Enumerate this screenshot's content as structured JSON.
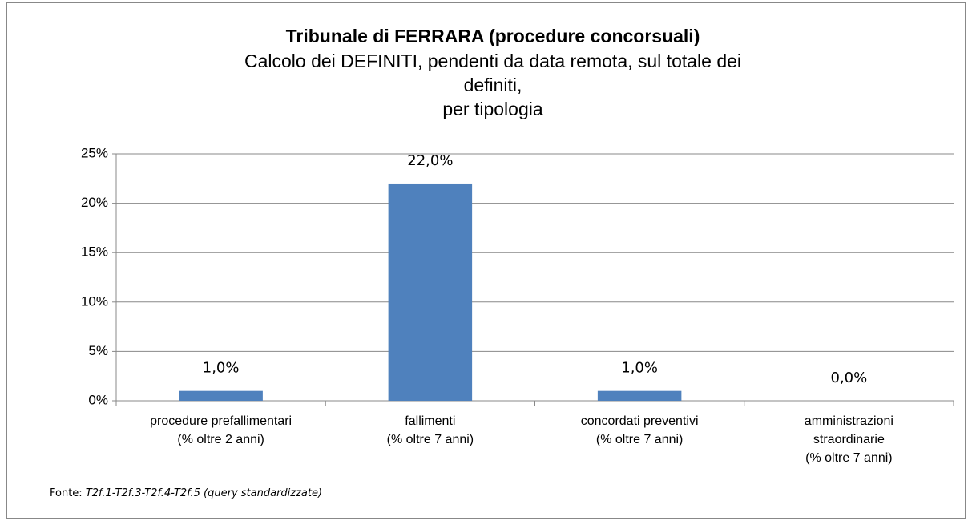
{
  "chart_data": {
    "type": "bar",
    "title": "Tribunale di FERRARA (procedure concorsuali)",
    "subtitle": [
      "Calcolo dei DEFINITI, pendenti da data remota, sul totale dei",
      "definiti,",
      "per tipologia"
    ],
    "categories": [
      "procedure prefallimentari\n(% oltre 2 anni)",
      "fallimenti\n(% oltre 7 anni)",
      "concordati preventivi\n(% oltre 7 anni)",
      "amministrazioni\nstraordinarie\n(% oltre 7 anni)"
    ],
    "values": [
      1,
      22,
      1,
      0
    ],
    "value_labels": [
      "1,0%",
      "22,0%",
      "1,0%",
      "0,0%"
    ],
    "color": "#4f81bd",
    "ylim": [
      0,
      25
    ],
    "yticks": [
      {
        "value": 0,
        "label": "0%"
      },
      {
        "value": 5,
        "label": "5%"
      },
      {
        "value": 10,
        "label": "10%"
      },
      {
        "value": 15,
        "label": "15%"
      },
      {
        "value": 20,
        "label": "20%"
      },
      {
        "value": 25,
        "label": "25%"
      }
    ],
    "grid": true,
    "source_label": "Fonte:",
    "source_text": "T2f.1-T2f.3-T2f.4-T2f.5 (query standardizzate)"
  }
}
